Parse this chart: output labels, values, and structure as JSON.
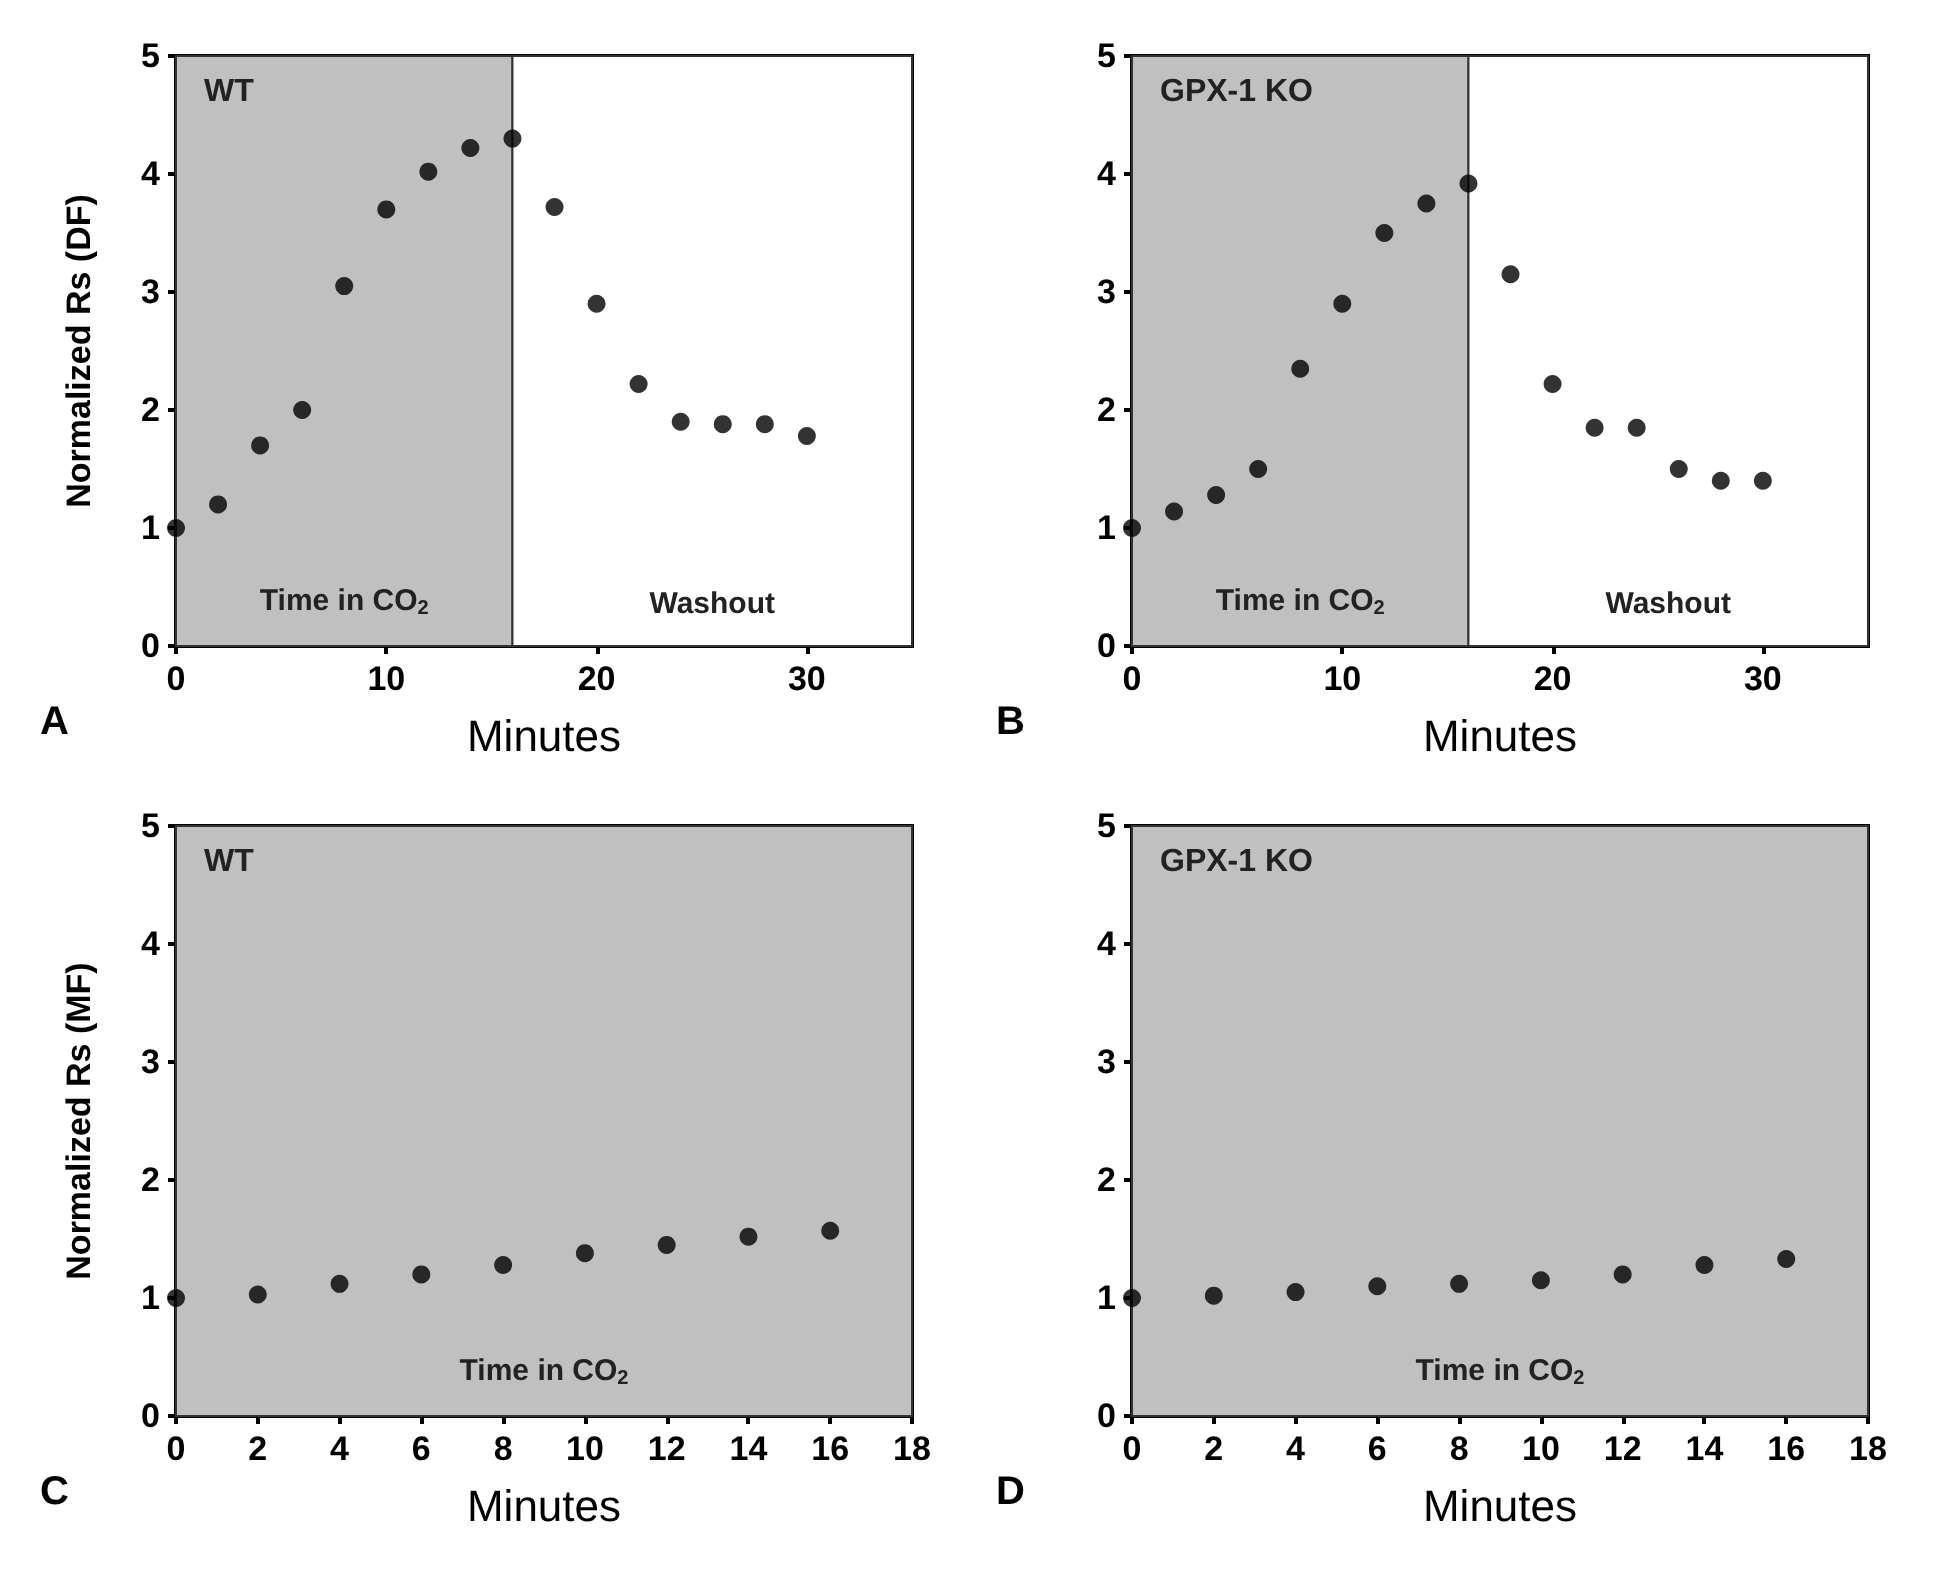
{
  "chart_data": [
    {
      "type": "scatter",
      "xlabel": "Minutes",
      "ylabel": "Normalized Rs (DF)",
      "annotations": [
        "WT",
        "A"
      ],
      "x": [
        0,
        2,
        4,
        6,
        8,
        10,
        12,
        14,
        16,
        18,
        20,
        22,
        24,
        26,
        28,
        30
      ],
      "series": [
        {
          "color": "#000000",
          "values": [
            1.0,
            1.2,
            1.7,
            2.0,
            3.05,
            3.7,
            4.02,
            4.22,
            4.3,
            3.72,
            2.9,
            2.22,
            1.9,
            1.88,
            1.88,
            1.78
          ]
        }
      ],
      "xlim": [
        0,
        35
      ],
      "xticks": [
        0,
        10,
        20,
        30
      ],
      "ylim": [
        0,
        5
      ],
      "yticks": [
        0,
        1,
        2,
        3,
        4,
        5
      ],
      "bands": [
        {
          "axis": "x",
          "from": 0,
          "to": 16,
          "label": "Time in CO$_{2}$",
          "color": "#c0c0c0"
        },
        {
          "axis": "x",
          "from": 16,
          "to": 35,
          "label": "Washout",
          "color": "#ffffff"
        }
      ],
      "grid": false,
      "marker": "circle"
    },
    {
      "type": "scatter",
      "xlabel": "Minutes",
      "annotations": [
        "GPX-1 KO",
        "B"
      ],
      "x": [
        0,
        2,
        4,
        6,
        8,
        10,
        12,
        14,
        16,
        18,
        20,
        22,
        24,
        26,
        28,
        30
      ],
      "series": [
        {
          "color": "#000000",
          "values": [
            1.0,
            1.14,
            1.28,
            1.5,
            2.35,
            2.9,
            3.5,
            3.75,
            3.92,
            3.15,
            2.22,
            1.85,
            1.85,
            1.5,
            1.4,
            1.4
          ]
        }
      ],
      "xlim": [
        0,
        35
      ],
      "xticks": [
        0,
        10,
        20,
        30
      ],
      "ylim": [
        0,
        5
      ],
      "yticks": [
        0,
        1,
        2,
        3,
        4,
        5
      ],
      "bands": [
        {
          "axis": "x",
          "from": 0,
          "to": 16,
          "label": "Time in CO$_{2}$",
          "color": "#c0c0c0"
        },
        {
          "axis": "x",
          "from": 16,
          "to": 35,
          "label": "Washout",
          "color": "#ffffff"
        }
      ],
      "grid": false,
      "marker": "circle"
    },
    {
      "type": "scatter",
      "xlabel": "Minutes",
      "ylabel": "Normalized Rs (MF)",
      "annotations": [
        "WT",
        "C"
      ],
      "x": [
        0,
        2,
        4,
        6,
        8,
        10,
        12,
        14,
        16
      ],
      "series": [
        {
          "color": "#000000",
          "values": [
            1.0,
            1.03,
            1.12,
            1.2,
            1.28,
            1.38,
            1.45,
            1.52,
            1.57
          ]
        }
      ],
      "xlim": [
        0,
        18
      ],
      "xticks": [
        0,
        2,
        4,
        6,
        8,
        10,
        12,
        14,
        16,
        18
      ],
      "ylim": [
        0,
        5
      ],
      "yticks": [
        0,
        1,
        2,
        3,
        4,
        5
      ],
      "bands": [
        {
          "axis": "x",
          "from": 0,
          "to": 18,
          "label": "Time in CO$_{2}$",
          "color": "#c0c0c0"
        }
      ],
      "grid": false,
      "marker": "circle"
    },
    {
      "type": "scatter",
      "xlabel": "Minutes",
      "annotations": [
        "GPX-1 KO",
        "D"
      ],
      "x": [
        0,
        2,
        4,
        6,
        8,
        10,
        12,
        14,
        16
      ],
      "series": [
        {
          "color": "#000000",
          "values": [
            1.0,
            1.02,
            1.05,
            1.1,
            1.12,
            1.15,
            1.2,
            1.28,
            1.33
          ]
        }
      ],
      "xlim": [
        0,
        18
      ],
      "xticks": [
        0,
        2,
        4,
        6,
        8,
        10,
        12,
        14,
        16,
        18
      ],
      "ylim": [
        0,
        5
      ],
      "yticks": [
        0,
        1,
        2,
        3,
        4,
        5
      ],
      "bands": [
        {
          "axis": "x",
          "from": 0,
          "to": 18,
          "label": "Time in CO$_{2}$",
          "color": "#c0c0c0"
        }
      ],
      "grid": false,
      "marker": "circle"
    }
  ]
}
